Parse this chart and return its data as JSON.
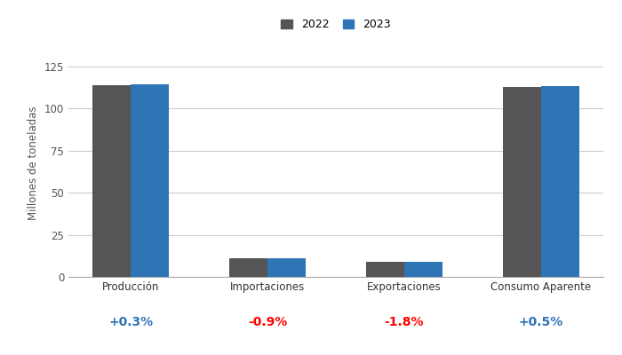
{
  "categories": [
    "Producción",
    "Importaciones",
    "Exportaciones",
    "Consumo Aparente"
  ],
  "values_2022": [
    114.0,
    11.0,
    9.0,
    113.0
  ],
  "values_2023": [
    114.3,
    10.9,
    8.8,
    113.6
  ],
  "color_2022": "#555555",
  "color_2023": "#2e75b6",
  "ylabel": "Millones de toneladas",
  "yticks": [
    0,
    25,
    50,
    75,
    100,
    125
  ],
  "ylim": [
    0,
    135
  ],
  "legend_labels": [
    "2022",
    "2023"
  ],
  "pct_labels": [
    "+0.3%",
    "-0.9%",
    "-1.8%",
    "+0.5%"
  ],
  "pct_colors": [
    "#2e75b6",
    "#ff0000",
    "#ff0000",
    "#2e75b6"
  ],
  "bg_color": "#ffffff",
  "grid_color": "#cccccc",
  "bar_width": 0.28
}
